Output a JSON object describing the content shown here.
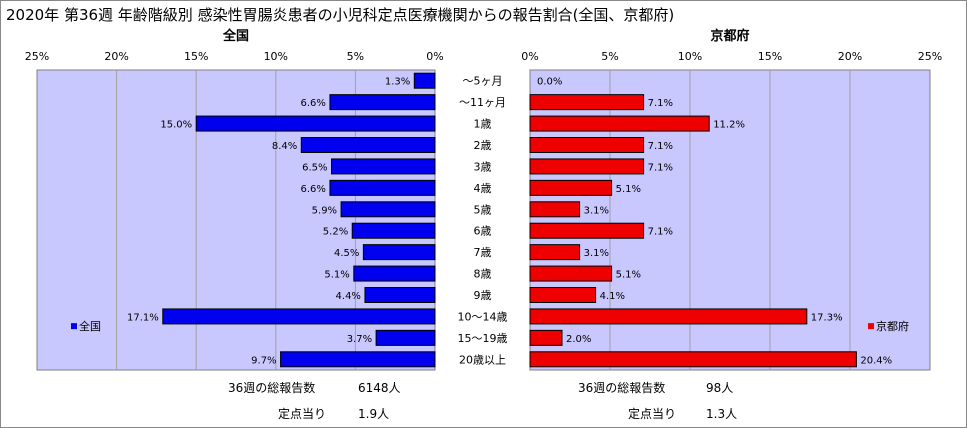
{
  "title": "2020年 第36週 年齢階級別 感染性胃腸炎患者の小児科定点医療機関からの報告割合(全国、京都府)",
  "colors": {
    "left_bar": "#0000ee",
    "right_bar": "#ee0000",
    "plot_bg": "#c8c8ff"
  },
  "chart_data": [
    {
      "type": "bar",
      "orientation": "horizontal",
      "direction": "reversed",
      "panel_title": "全国",
      "legend": "全国",
      "legend_position": "bottom-left",
      "xlim": [
        0,
        25
      ],
      "x_ticks": [
        "25%",
        "20%",
        "15%",
        "10%",
        "5%",
        "0%"
      ],
      "grid": true,
      "categories": [
        "～5ヶ月",
        "～11ヶ月",
        "1歳",
        "2歳",
        "3歳",
        "4歳",
        "5歳",
        "6歳",
        "7歳",
        "8歳",
        "9歳",
        "10～14歳",
        "15～19歳",
        "20歳以上"
      ],
      "values": [
        1.3,
        6.6,
        15.0,
        8.4,
        6.5,
        6.6,
        5.9,
        5.2,
        4.5,
        5.1,
        4.4,
        17.1,
        3.7,
        9.7
      ],
      "labels": [
        "1.3%",
        "6.6%",
        "15.0%",
        "8.4%",
        "6.5%",
        "6.6%",
        "5.9%",
        "5.2%",
        "4.5%",
        "5.1%",
        "4.4%",
        "17.1%",
        "3.7%",
        "9.7%"
      ]
    },
    {
      "type": "bar",
      "orientation": "horizontal",
      "panel_title": "京都府",
      "legend": "京都府",
      "legend_position": "bottom-right",
      "xlim": [
        0,
        25
      ],
      "x_ticks": [
        "0%",
        "5%",
        "10%",
        "15%",
        "20%",
        "25%"
      ],
      "grid": true,
      "categories": [
        "～5ヶ月",
        "～11ヶ月",
        "1歳",
        "2歳",
        "3歳",
        "4歳",
        "5歳",
        "6歳",
        "7歳",
        "8歳",
        "9歳",
        "10～14歳",
        "15～19歳",
        "20歳以上"
      ],
      "values": [
        0.0,
        7.1,
        11.2,
        7.1,
        7.1,
        5.1,
        3.1,
        7.1,
        3.1,
        5.1,
        4.1,
        17.3,
        2.0,
        20.4
      ],
      "labels": [
        "0.0%",
        "7.1%",
        "11.2%",
        "7.1%",
        "7.1%",
        "5.1%",
        "3.1%",
        "7.1%",
        "3.1%",
        "5.1%",
        "4.1%",
        "17.3%",
        "2.0%",
        "20.4%"
      ]
    }
  ],
  "footer": {
    "left": {
      "reports_label": "36週の総報告数",
      "reports_value": "6148人",
      "per_label": "定点当り",
      "per_value": "1.9人"
    },
    "right": {
      "reports_label": "36週の総報告数",
      "reports_value": "98人",
      "per_label": "定点当り",
      "per_value": "1.3人"
    }
  }
}
